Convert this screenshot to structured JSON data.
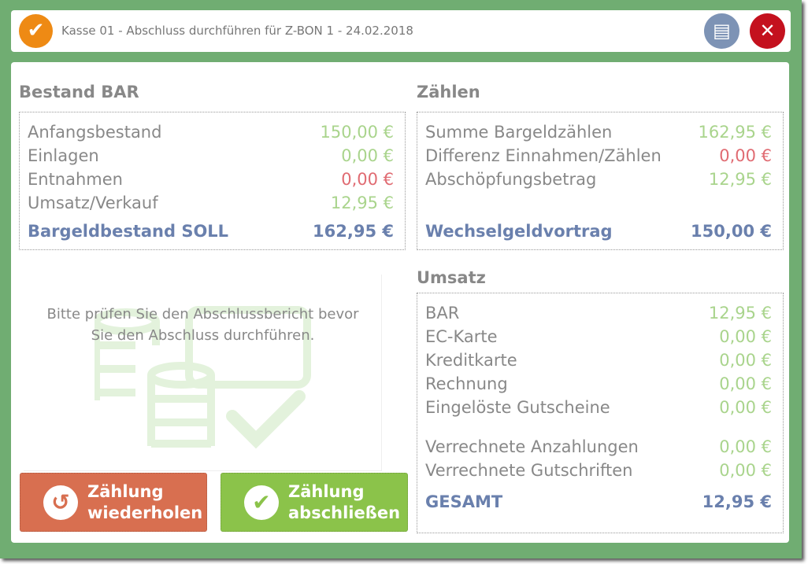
{
  "header": {
    "title": "Kasse 01 - Abschluss durchführen für Z-BON 1 - 24.02.2018",
    "logo_icon": "checkmark-badge-icon",
    "print_icon": "cash-register-icon",
    "close_icon": "close-icon"
  },
  "bestand": {
    "title": "Bestand BAR",
    "rows": [
      {
        "label": "Anfangsbestand",
        "value": "150,00 €",
        "color": "green"
      },
      {
        "label": "Einlagen",
        "value": "0,00 €",
        "color": "green"
      },
      {
        "label": "Entnahmen",
        "value": "0,00 €",
        "color": "red"
      },
      {
        "label": "Umsatz/Verkauf",
        "value": "12,95 €",
        "color": "green"
      }
    ],
    "total": {
      "label": "Bargeldbestand SOLL",
      "value": "162,95 €"
    }
  },
  "zaehlen": {
    "title": "Zählen",
    "rows": [
      {
        "label": "Summe Bargeldzählen",
        "value": "162,95 €",
        "color": "green"
      },
      {
        "label": "Differenz Einnahmen/Zählen",
        "value": "0,00 €",
        "color": "red"
      },
      {
        "label": "Abschöpfungsbetrag",
        "value": "12,95 €",
        "color": "green"
      }
    ],
    "total": {
      "label": "Wechselgeldvortrag",
      "value": "150,00 €"
    }
  },
  "umsatz": {
    "title": "Umsatz",
    "rows": [
      {
        "label": "BAR",
        "value": "12,95 €"
      },
      {
        "label": "EC-Karte",
        "value": "0,00 €"
      },
      {
        "label": "Kreditkarte",
        "value": "0,00 €"
      },
      {
        "label": "Rechnung",
        "value": "0,00 €"
      },
      {
        "label": "Eingelöste Gutscheine",
        "value": "0,00 €"
      },
      {
        "label": "Verrechnete Anzahlungen",
        "value": "0,00 €"
      },
      {
        "label": "Verrechnete Gutschriften",
        "value": "0,00 €"
      }
    ],
    "total": {
      "label": "GESAMT",
      "value": "12,95 €"
    }
  },
  "message": {
    "line1": "Bitte prüfen Sie den Abschlussbericht bevor",
    "line2": "Sie den Abschluss durchführen."
  },
  "buttons": {
    "repeat_line1": "Zählung",
    "repeat_line2": "wiederholen",
    "finish_line1": "Zählung",
    "finish_line2": "abschließen"
  },
  "colors": {
    "frame": "#70ad72",
    "positive": "#a9d48c",
    "negative": "#e06b72",
    "total": "#6a80ad",
    "repeat": "#d86f50",
    "finish": "#8bc34a"
  }
}
